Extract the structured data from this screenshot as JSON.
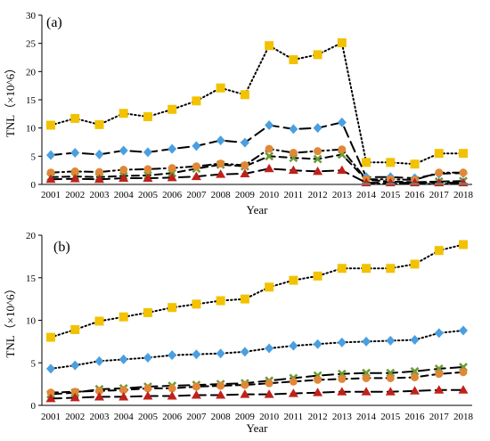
{
  "chart_data": [
    {
      "type": "line",
      "panel_label": "(a)",
      "xlabel": "Year",
      "ylabel": "TNL（×10^6）",
      "ylim": [
        0,
        30
      ],
      "yticks": [
        0,
        5,
        10,
        15,
        20,
        25,
        30
      ],
      "x": [
        "2001",
        "2002",
        "2003",
        "2004",
        "2005",
        "2006",
        "2007",
        "2008",
        "2009",
        "2010",
        "2011",
        "2012",
        "2013",
        "2014",
        "2015",
        "2016",
        "2017",
        "2018"
      ],
      "grid": false,
      "series": [
        {
          "marker": "square",
          "color": "#f2c200",
          "line": "dotted",
          "values": [
            10.5,
            11.7,
            10.6,
            12.6,
            12.0,
            13.3,
            14.8,
            17.1,
            15.9,
            24.6,
            22.1,
            23.0,
            25.1,
            3.9,
            3.9,
            3.6,
            5.5,
            5.5
          ]
        },
        {
          "marker": "diamond",
          "color": "#4a9fe0",
          "line": "long-dash",
          "values": [
            5.2,
            5.6,
            5.3,
            6.0,
            5.7,
            6.3,
            6.8,
            7.8,
            7.4,
            10.5,
            9.8,
            10.0,
            11.0,
            1.3,
            1.3,
            1.1,
            1.9,
            2.0
          ]
        },
        {
          "marker": "x",
          "color": "#6e9a35",
          "line": "dash",
          "values": [
            1.3,
            1.4,
            1.3,
            1.5,
            1.6,
            2.0,
            2.8,
            3.5,
            3.2,
            5.0,
            4.7,
            4.5,
            5.3,
            0.8,
            0.5,
            0.4,
            0.5,
            0.6
          ]
        },
        {
          "marker": "circle",
          "color": "#e08838",
          "line": "dash-dot",
          "values": [
            2.1,
            2.3,
            2.2,
            2.6,
            2.7,
            2.9,
            3.2,
            3.7,
            3.4,
            6.3,
            5.6,
            5.9,
            6.2,
            0.9,
            0.9,
            0.8,
            2.1,
            2.1
          ]
        },
        {
          "marker": "triangle",
          "color": "#c0211b",
          "line": "long-dash",
          "values": [
            0.9,
            1.0,
            0.9,
            1.1,
            1.1,
            1.2,
            1.4,
            1.8,
            1.9,
            2.8,
            2.5,
            2.3,
            2.5,
            0.3,
            0.3,
            0.3,
            0.3,
            0.3
          ]
        },
        {
          "marker": "dash",
          "color": "#7a7a7a",
          "line": "dash-dot",
          "values": [
            null,
            null,
            null,
            null,
            null,
            null,
            null,
            null,
            null,
            null,
            null,
            null,
            null,
            0.1,
            0.1,
            0.1,
            0.1,
            0.1
          ]
        }
      ]
    },
    {
      "type": "line",
      "panel_label": "(b)",
      "xlabel": "Year",
      "ylabel": "TNL（×10^6）",
      "ylim": [
        0,
        20
      ],
      "yticks": [
        0,
        5,
        10,
        15,
        20
      ],
      "x": [
        "2001",
        "2002",
        "2003",
        "2004",
        "2005",
        "2006",
        "2007",
        "2008",
        "2009",
        "2010",
        "2011",
        "2012",
        "2013",
        "2014",
        "2015",
        "2016",
        "2017",
        "2018"
      ],
      "grid": false,
      "series": [
        {
          "marker": "square",
          "color": "#f2c200",
          "line": "dotted",
          "values": [
            8.0,
            8.9,
            9.9,
            10.4,
            10.9,
            11.5,
            11.9,
            12.3,
            12.5,
            13.9,
            14.7,
            15.2,
            16.1,
            16.1,
            16.1,
            16.6,
            18.2,
            18.9
          ]
        },
        {
          "marker": "diamond",
          "color": "#4a9fe0",
          "line": "dotted",
          "values": [
            4.3,
            4.7,
            5.2,
            5.4,
            5.6,
            5.9,
            6.0,
            6.1,
            6.3,
            6.7,
            7.0,
            7.2,
            7.4,
            7.5,
            7.6,
            7.7,
            8.5,
            8.8
          ]
        },
        {
          "marker": "x",
          "color": "#6e9a35",
          "line": "long-dash",
          "values": [
            1.3,
            1.5,
            1.9,
            2.0,
            2.2,
            2.3,
            2.4,
            2.5,
            2.6,
            2.9,
            3.2,
            3.5,
            3.7,
            3.8,
            3.8,
            4.0,
            4.3,
            4.5
          ]
        },
        {
          "marker": "circle",
          "color": "#e08838",
          "line": "dash",
          "values": [
            1.5,
            1.6,
            1.7,
            1.8,
            2.0,
            2.0,
            2.2,
            2.3,
            2.4,
            2.6,
            2.8,
            3.0,
            3.1,
            3.2,
            3.2,
            3.3,
            3.7,
            3.9
          ]
        },
        {
          "marker": "triangle",
          "color": "#c0211b",
          "line": "long-dash",
          "values": [
            0.8,
            0.9,
            1.0,
            1.0,
            1.1,
            1.1,
            1.2,
            1.2,
            1.3,
            1.3,
            1.4,
            1.5,
            1.6,
            1.6,
            1.6,
            1.7,
            1.8,
            1.8
          ]
        }
      ]
    }
  ]
}
